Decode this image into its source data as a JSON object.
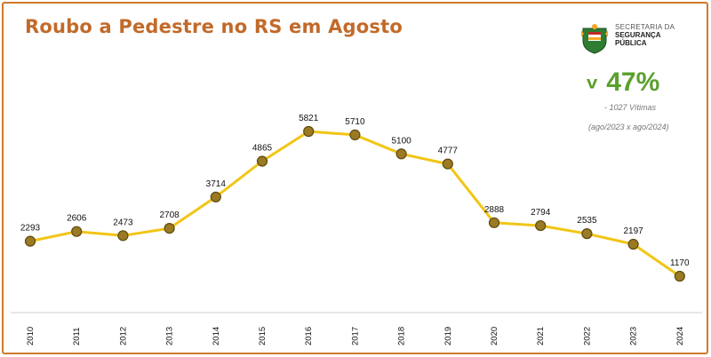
{
  "title": "Roubo a Pedestre no RS em Agosto",
  "logo": {
    "icon": "rs-coat-of-arms-icon",
    "line1": "SECRETARIA DA",
    "line2": "SEGURANÇA",
    "line3": "PÚBLICA"
  },
  "summary": {
    "arrow": "v",
    "change": "47%",
    "victims_note": "- 1027 Vítimas",
    "period_note": "(ago/2023 x ago/2024)",
    "color": "#5aa02c"
  },
  "colors": {
    "frame": "#d07a2c",
    "title": "#c26a2a",
    "line": "#f2c515",
    "marker_fill": "#9a7a22",
    "marker_stroke": "#5e4a10"
  },
  "chart_data": {
    "type": "line",
    "categories": [
      "2010",
      "2011",
      "2012",
      "2013",
      "2014",
      "2015",
      "2016",
      "2017",
      "2018",
      "2019",
      "2020",
      "2021",
      "2022",
      "2023",
      "2024"
    ],
    "values": [
      2293,
      2606,
      2473,
      2708,
      3714,
      4865,
      5821,
      5710,
      5100,
      4777,
      2888,
      2794,
      2535,
      2197,
      1170
    ],
    "title": "Roubo a Pedestre no RS em Agosto",
    "xlabel": "",
    "ylabel": "",
    "ylim": [
      0,
      6500
    ],
    "grid": false,
    "legend": "none",
    "data_labels": true
  }
}
